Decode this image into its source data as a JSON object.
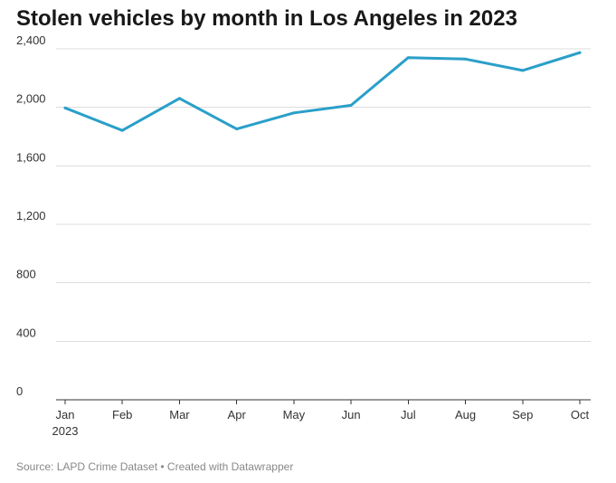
{
  "chart_data": {
    "type": "line",
    "title": "Stolen vehicles by month in Los Angeles in 2023",
    "categories": [
      "Jan",
      "Feb",
      "Mar",
      "Apr",
      "May",
      "Jun",
      "Jul",
      "Aug",
      "Sep",
      "Oct"
    ],
    "x_sublabel": "2023",
    "series": [
      {
        "values": [
          1996,
          1842,
          2061,
          1852,
          1962,
          2014,
          2340,
          2330,
          2252,
          2374
        ],
        "color": "#2a9fc9"
      }
    ],
    "yticks": [
      0,
      400,
      800,
      1200,
      1600,
      2000,
      2400
    ],
    "ytick_labels": [
      "0",
      "400",
      "800",
      "1,200",
      "1,600",
      "2,000",
      "2,400"
    ],
    "ylim": [
      0,
      2400
    ],
    "grid": true,
    "xlabel": "",
    "ylabel": ""
  },
  "footer": {
    "source": "Source: LAPD Crime Dataset • Created with Datawrapper"
  }
}
